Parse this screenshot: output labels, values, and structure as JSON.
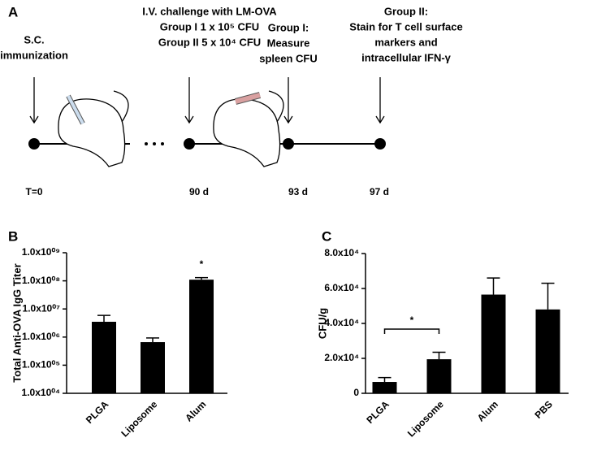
{
  "diagram": {
    "panel": "A",
    "events": [
      {
        "lines": [
          "S.C.",
          "immunization"
        ],
        "time": "T=0"
      },
      {
        "lines": [
          "I.V. challenge with LM-OVA",
          "Group I 1 x 10⁵ CFU",
          "Group II 5 x 10⁴ CFU"
        ],
        "time": "90 d"
      },
      {
        "lines": [
          "Group I:",
          "Measure",
          "spleen CFU"
        ],
        "time": "93 d"
      },
      {
        "lines": [
          "Group II:",
          "Stain for T cell surface",
          "markers and",
          "intracellular IFN-γ"
        ],
        "time": "97 d"
      }
    ]
  },
  "chart_data": [
    {
      "type": "bar",
      "panel": "B",
      "y_label": "Total Anti-OVA IgG Titer",
      "categories": [
        "PLGA",
        "Liposome",
        "Alum"
      ],
      "values": [
        3500000,
        660000,
        110000000
      ],
      "errors": [
        2400000,
        270000,
        20000000
      ],
      "color": "#000000",
      "log_y": true,
      "annotation": "*",
      "ylim": [
        10000,
        1000000000
      ],
      "yticks": [
        {
          "value": 10000,
          "label": "1.0x10⁰⁴"
        },
        {
          "value": 100000,
          "label": "1.0x10⁰⁵"
        },
        {
          "value": 1000000,
          "label": "1.0x10⁰⁶"
        },
        {
          "value": 10000000,
          "label": "1.0x10⁰⁷"
        },
        {
          "value": 100000000,
          "label": "1.0x10⁰⁸"
        },
        {
          "value": 1000000000,
          "label": "1.0x10⁰⁹"
        }
      ]
    },
    {
      "type": "bar",
      "panel": "C",
      "y_label": "CFU/g",
      "categories": [
        "PLGA",
        "Liposome",
        "Alum",
        "PBS"
      ],
      "values": [
        6500,
        19500,
        56500,
        48000
      ],
      "errors": [
        2500,
        4000,
        9500,
        15000
      ],
      "color": "#000000",
      "log_y": false,
      "annotation": "*",
      "ylim": [
        0,
        80000
      ],
      "yticks": [
        0,
        {
          "value": 20000,
          "label": "2.0x10⁴"
        },
        {
          "value": 40000,
          "label": "4.0x10⁴"
        },
        {
          "value": 60000,
          "label": "6.0x10⁴"
        },
        {
          "value": 80000,
          "label": "8.0x10⁴"
        }
      ]
    }
  ]
}
